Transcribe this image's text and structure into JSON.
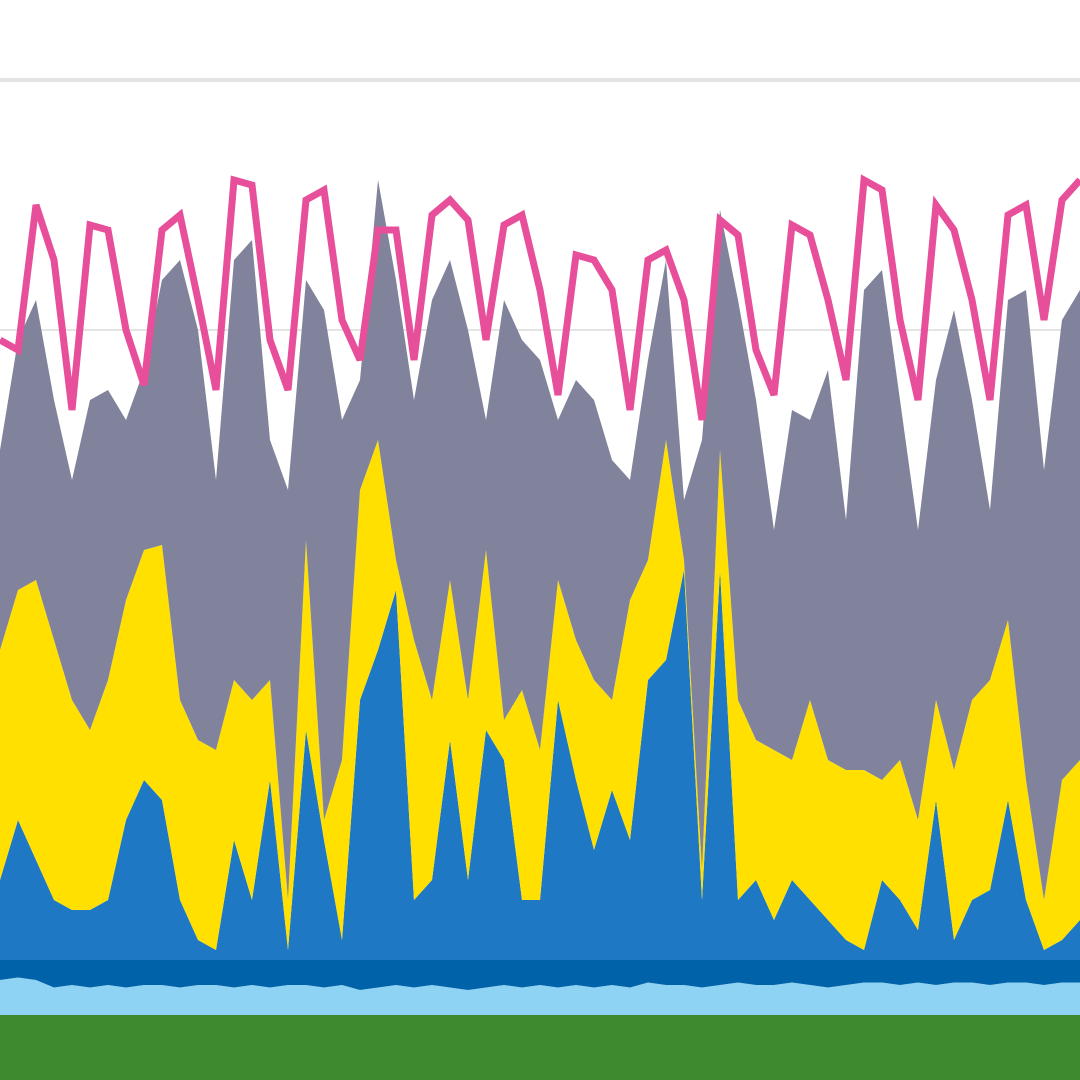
{
  "chart_data": {
    "type": "area",
    "stacked": true,
    "grid": true,
    "ylim": [
      0,
      43.2
    ],
    "yticks": [
      30,
      40
    ],
    "categories": [
      null,
      null,
      null,
      null,
      null,
      null,
      null,
      null,
      null,
      null,
      null,
      null,
      null,
      null,
      null,
      null,
      null,
      null,
      null,
      null,
      null,
      null,
      null,
      null,
      null,
      null,
      null,
      null,
      null,
      null,
      null,
      null,
      null,
      null,
      null,
      null,
      null,
      null,
      null,
      null,
      null,
      null,
      null,
      null,
      null,
      null,
      null,
      null,
      null,
      null,
      null,
      null,
      null,
      null,
      null,
      null,
      null,
      null,
      null,
      null,
      null
    ],
    "series": [
      {
        "color": "#3d8b2f",
        "values": [
          2.6,
          2.6,
          2.6,
          2.6,
          2.6,
          2.6,
          2.6,
          2.6,
          2.6,
          2.6,
          2.6,
          2.6,
          2.6,
          2.6,
          2.6,
          2.6,
          2.6,
          2.6,
          2.6,
          2.6,
          2.6,
          2.6,
          2.6,
          2.6,
          2.6,
          2.6,
          2.6,
          2.6,
          2.6,
          2.6,
          2.6,
          2.6,
          2.6,
          2.6,
          2.6,
          2.6,
          2.6,
          2.6,
          2.6,
          2.6,
          2.6,
          2.6,
          2.6,
          2.6,
          2.6,
          2.6,
          2.6,
          2.6,
          2.6,
          2.6,
          2.6,
          2.6,
          2.6,
          2.6,
          2.6,
          2.6,
          2.6,
          2.6,
          2.6,
          2.6,
          2.6
        ]
      },
      {
        "color": "#8fd3f4",
        "values": [
          1.4,
          1.5,
          1.4,
          1.1,
          1.2,
          1.1,
          1.2,
          1.1,
          1.2,
          1.2,
          1.1,
          1.2,
          1.2,
          1.1,
          1.2,
          1.1,
          1.2,
          1.2,
          1.1,
          1.2,
          1.0,
          1.1,
          1.2,
          1.1,
          1.2,
          1.1,
          1.0,
          1.1,
          1.2,
          1.1,
          1.2,
          1.1,
          1.2,
          1.1,
          1.2,
          1.1,
          1.3,
          1.2,
          1.2,
          1.1,
          1.2,
          1.3,
          1.2,
          1.2,
          1.3,
          1.2,
          1.1,
          1.2,
          1.3,
          1.3,
          1.2,
          1.3,
          1.2,
          1.3,
          1.3,
          1.2,
          1.3,
          1.3,
          1.2,
          1.3,
          1.3
        ]
      },
      {
        "color": "#0062a8",
        "values": [
          0.8,
          0.7,
          0.8,
          1.1,
          1.0,
          1.1,
          1.0,
          1.1,
          1.0,
          1.0,
          1.1,
          1.0,
          1.0,
          1.1,
          1.0,
          1.1,
          1.0,
          1.0,
          1.1,
          1.0,
          1.2,
          1.1,
          1.0,
          1.1,
          1.0,
          1.1,
          1.2,
          1.1,
          1.0,
          1.1,
          1.0,
          1.1,
          1.0,
          1.1,
          1.0,
          1.1,
          0.9,
          1.0,
          1.0,
          1.1,
          1.0,
          0.9,
          1.0,
          1.0,
          0.9,
          1.0,
          1.1,
          1.0,
          0.9,
          0.9,
          1.0,
          0.9,
          1.0,
          0.9,
          0.9,
          1.0,
          0.9,
          0.9,
          1.0,
          0.9,
          0.9
        ]
      },
      {
        "color": "#1f78c4",
        "values": [
          3.2,
          5.6,
          4.0,
          2.4,
          2.0,
          2.0,
          2.4,
          5.6,
          7.2,
          6.4,
          2.4,
          0.8,
          0.4,
          4.8,
          2.4,
          7.2,
          0.4,
          9.2,
          4.8,
          0.8,
          10.4,
          12.4,
          14.8,
          2.4,
          3.2,
          8.8,
          3.2,
          9.2,
          8.0,
          2.4,
          2.4,
          10.4,
          7.2,
          4.4,
          6.8,
          4.8,
          11.2,
          12.0,
          15.6,
          2.4,
          15.6,
          2.4,
          3.2,
          1.6,
          3.2,
          2.4,
          1.6,
          0.8,
          0.4,
          3.2,
          2.4,
          1.2,
          6.4,
          0.8,
          2.4,
          2.8,
          6.4,
          2.4,
          0.4,
          0.8,
          1.6
        ]
      },
      {
        "color": "#ffe000",
        "values": [
          9.2,
          9.2,
          11.2,
          10.4,
          8.4,
          7.2,
          8.8,
          8.8,
          9.2,
          10.2,
          8.0,
          8.0,
          8.0,
          6.4,
          8.0,
          4.0,
          2.0,
          7.6,
          0.8,
          7.2,
          8.4,
          8.4,
          1.2,
          10.4,
          7.2,
          6.4,
          7.2,
          7.2,
          1.6,
          8.4,
          6.0,
          4.8,
          5.6,
          6.8,
          3.6,
          9.6,
          4.8,
          8.8,
          0.4,
          1.2,
          4.8,
          8.0,
          5.6,
          6.8,
          4.8,
          8.0,
          6.4,
          6.8,
          7.2,
          4.0,
          5.6,
          4.4,
          4.0,
          6.8,
          8.0,
          8.4,
          7.2,
          4.8,
          2.0,
          6.4,
          6.4
        ]
      },
      {
        "color": "#80839b",
        "values": [
          8.0,
          10.0,
          11.2,
          9.6,
          8.8,
          13.2,
          11.6,
          7.2,
          7.2,
          10.6,
          17.6,
          16.4,
          10.8,
          16.8,
          18.4,
          9.6,
          16.4,
          10.4,
          20.4,
          13.6,
          4.4,
          10.4,
          11.2,
          9.6,
          16.0,
          12.8,
          14.8,
          5.2,
          16.8,
          14.0,
          15.6,
          6.4,
          10.4,
          11.2,
          9.6,
          4.8,
          8.0,
          7.2,
          2.4,
          17.2,
          9.6,
          16.0,
          13.6,
          8.8,
          14.0,
          11.2,
          15.6,
          10.0,
          19.2,
          20.4,
          14.4,
          11.6,
          12.8,
          18.4,
          12.0,
          6.8,
          12.8,
          19.6,
          17.2,
          18.4,
          18.8
        ]
      },
      {
        "type": "line",
        "color": "#e84f9b",
        "values": [
          29.6,
          29.2,
          35.0,
          32.8,
          26.8,
          34.2,
          34.0,
          30.0,
          27.8,
          34.0,
          34.6,
          31.2,
          27.6,
          36.0,
          35.8,
          29.6,
          27.6,
          35.2,
          35.6,
          30.4,
          28.8,
          34.0,
          34.0,
          28.8,
          34.6,
          35.2,
          34.4,
          29.6,
          34.2,
          34.6,
          31.6,
          27.4,
          33.0,
          32.8,
          31.6,
          26.8,
          32.8,
          33.2,
          31.2,
          26.4,
          34.4,
          33.8,
          29.2,
          27.4,
          34.2,
          33.8,
          31.2,
          28.0,
          36.0,
          35.6,
          30.4,
          27.2,
          35.0,
          34.0,
          31.2,
          27.2,
          34.6,
          35.0,
          30.4,
          35.2,
          36.0
        ]
      }
    ]
  }
}
